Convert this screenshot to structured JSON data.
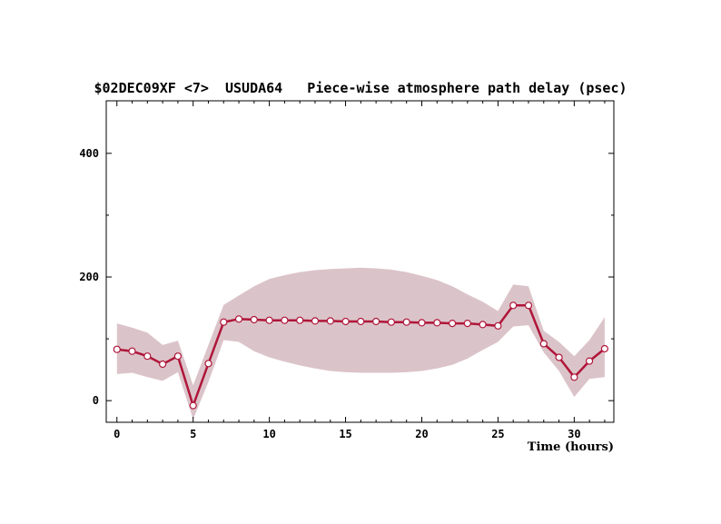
{
  "chart_data": {
    "type": "line",
    "title": "$02DEC09XF <7>  USUDA64   Piece-wise atmosphere path delay (psec)",
    "xlabel": "Time (hours)",
    "ylabel": "",
    "xlim": [
      -0.7,
      32.6
    ],
    "ylim": [
      -35,
      485
    ],
    "x_ticks": [
      0,
      5,
      10,
      15,
      20,
      25,
      30
    ],
    "y_ticks": [
      0,
      200,
      400
    ],
    "colors": {
      "line": "#b0163a",
      "band": "#dbc4c9",
      "marker_fill": "#ffffff",
      "axis": "#000000"
    },
    "series": [
      {
        "x": [
          0,
          1,
          2,
          3,
          4,
          5,
          6,
          7,
          8,
          9,
          10,
          11,
          12,
          13,
          14,
          15,
          16,
          17,
          18,
          19,
          20,
          21,
          22,
          23,
          24,
          25,
          26,
          27,
          28,
          29,
          30,
          31,
          32
        ],
        "values": [
          83,
          80,
          72,
          59,
          72,
          -8,
          60,
          127,
          132,
          131,
          130,
          130,
          130,
          129,
          129,
          128,
          128,
          128,
          127,
          127,
          126,
          126,
          125,
          125,
          123,
          121,
          154,
          154,
          92,
          70,
          38,
          64,
          84
        ],
        "band_upper": [
          125,
          118,
          110,
          90,
          97,
          25,
          90,
          155,
          170,
          185,
          197,
          203,
          208,
          211,
          213,
          214,
          215,
          214,
          212,
          208,
          202,
          195,
          185,
          172,
          160,
          145,
          188,
          185,
          113,
          95,
          72,
          98,
          135
        ],
        "band_lower": [
          43,
          45,
          38,
          32,
          46,
          -30,
          30,
          98,
          95,
          80,
          70,
          63,
          57,
          52,
          48,
          46,
          45,
          45,
          45,
          46,
          48,
          52,
          58,
          68,
          82,
          95,
          120,
          122,
          78,
          48,
          6,
          35,
          38
        ]
      }
    ]
  }
}
